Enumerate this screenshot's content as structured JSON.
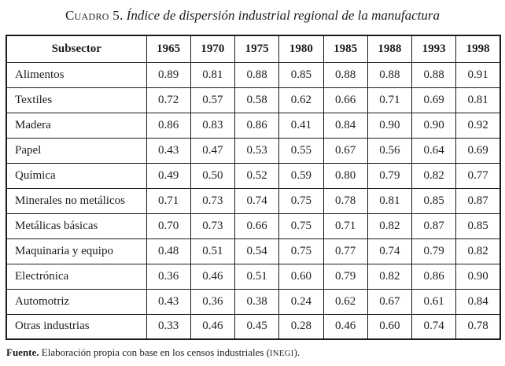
{
  "title": {
    "prefix": "Cuadro 5.",
    "text": "Índice de dispersión industrial regional de la manufactura"
  },
  "table": {
    "header": [
      "Subsector",
      "1965",
      "1970",
      "1975",
      "1980",
      "1985",
      "1988",
      "1993",
      "1998"
    ],
    "rows": [
      {
        "subsector": "Alimentos",
        "values": [
          "0.89",
          "0.81",
          "0.88",
          "0.85",
          "0.88",
          "0.88",
          "0.88",
          "0.91"
        ]
      },
      {
        "subsector": "Textiles",
        "values": [
          "0.72",
          "0.57",
          "0.58",
          "0.62",
          "0.66",
          "0.71",
          "0.69",
          "0.81"
        ]
      },
      {
        "subsector": "Madera",
        "values": [
          "0.86",
          "0.83",
          "0.86",
          "0.41",
          "0.84",
          "0.90",
          "0.90",
          "0.92"
        ]
      },
      {
        "subsector": "Papel",
        "values": [
          "0.43",
          "0.47",
          "0.53",
          "0.55",
          "0.67",
          "0.56",
          "0.64",
          "0.69"
        ]
      },
      {
        "subsector": "Química",
        "values": [
          "0.49",
          "0.50",
          "0.52",
          "0.59",
          "0.80",
          "0.79",
          "0.82",
          "0.77"
        ]
      },
      {
        "subsector": "Minerales no metálicos",
        "values": [
          "0.71",
          "0.73",
          "0.74",
          "0.75",
          "0.78",
          "0.81",
          "0.85",
          "0.87"
        ]
      },
      {
        "subsector": "Metálicas básicas",
        "values": [
          "0.70",
          "0.73",
          "0.66",
          "0.75",
          "0.71",
          "0.82",
          "0.87",
          "0.85"
        ]
      },
      {
        "subsector": "Maquinaria y equipo",
        "values": [
          "0.48",
          "0.51",
          "0.54",
          "0.75",
          "0.77",
          "0.74",
          "0.79",
          "0.82"
        ]
      },
      {
        "subsector": "Electrónica",
        "values": [
          "0.36",
          "0.46",
          "0.51",
          "0.60",
          "0.79",
          "0.82",
          "0.86",
          "0.90"
        ]
      },
      {
        "subsector": "Automotriz",
        "values": [
          "0.43",
          "0.36",
          "0.38",
          "0.24",
          "0.62",
          "0.67",
          "0.61",
          "0.84"
        ]
      },
      {
        "subsector": "Otras industrias",
        "values": [
          "0.33",
          "0.46",
          "0.45",
          "0.28",
          "0.46",
          "0.60",
          "0.74",
          "0.78"
        ]
      }
    ]
  },
  "footer": {
    "label": "Fuente.",
    "text": " Elaboración propia con base en los censos industriales (",
    "acronym": "INEGI",
    "suffix": ")."
  }
}
